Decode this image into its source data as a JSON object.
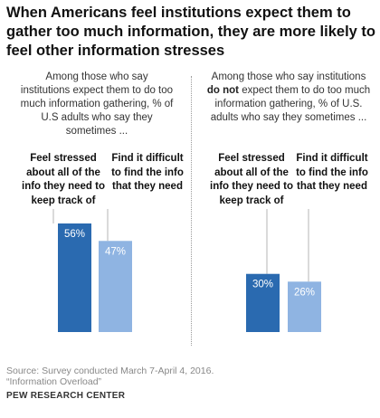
{
  "title": "When Americans feel institutions expect them to gather too much information, they are more likely to feel other information stresses",
  "chart_data": [
    {
      "type": "bar",
      "subtitle": {
        "before": "Among those who say institutions expect them to do too much information gathering, % of U.S adults who say they sometimes ...",
        "emphasis": "",
        "after": ""
      },
      "categories": [
        "Feel stressed about all of the info they need to keep track of",
        "Find it difficult to find the info that they need"
      ],
      "values": [
        56,
        47
      ],
      "data_labels": [
        "56%",
        "47%"
      ],
      "colors": [
        "#2a6ab0",
        "#8fb4e2"
      ],
      "ylim": [
        0,
        100
      ]
    },
    {
      "type": "bar",
      "subtitle": {
        "before": "Among those who say institutions",
        "emphasis": "do not",
        "after": "expect them to do too much information gathering, % of U.S. adults who say they sometimes ..."
      },
      "categories": [
        "Feel stressed about all of the info they need to keep track of",
        "Find it difficult to find the info that they need"
      ],
      "values": [
        30,
        26
      ],
      "data_labels": [
        "30%",
        "26%"
      ],
      "colors": [
        "#2a6ab0",
        "#8fb4e2"
      ],
      "ylim": [
        0,
        100
      ]
    }
  ],
  "footer": {
    "source": "Source: Survey conducted March 7-April 4, 2016.",
    "report": "“Information Overload”",
    "brand": "PEW RESEARCH CENTER"
  }
}
